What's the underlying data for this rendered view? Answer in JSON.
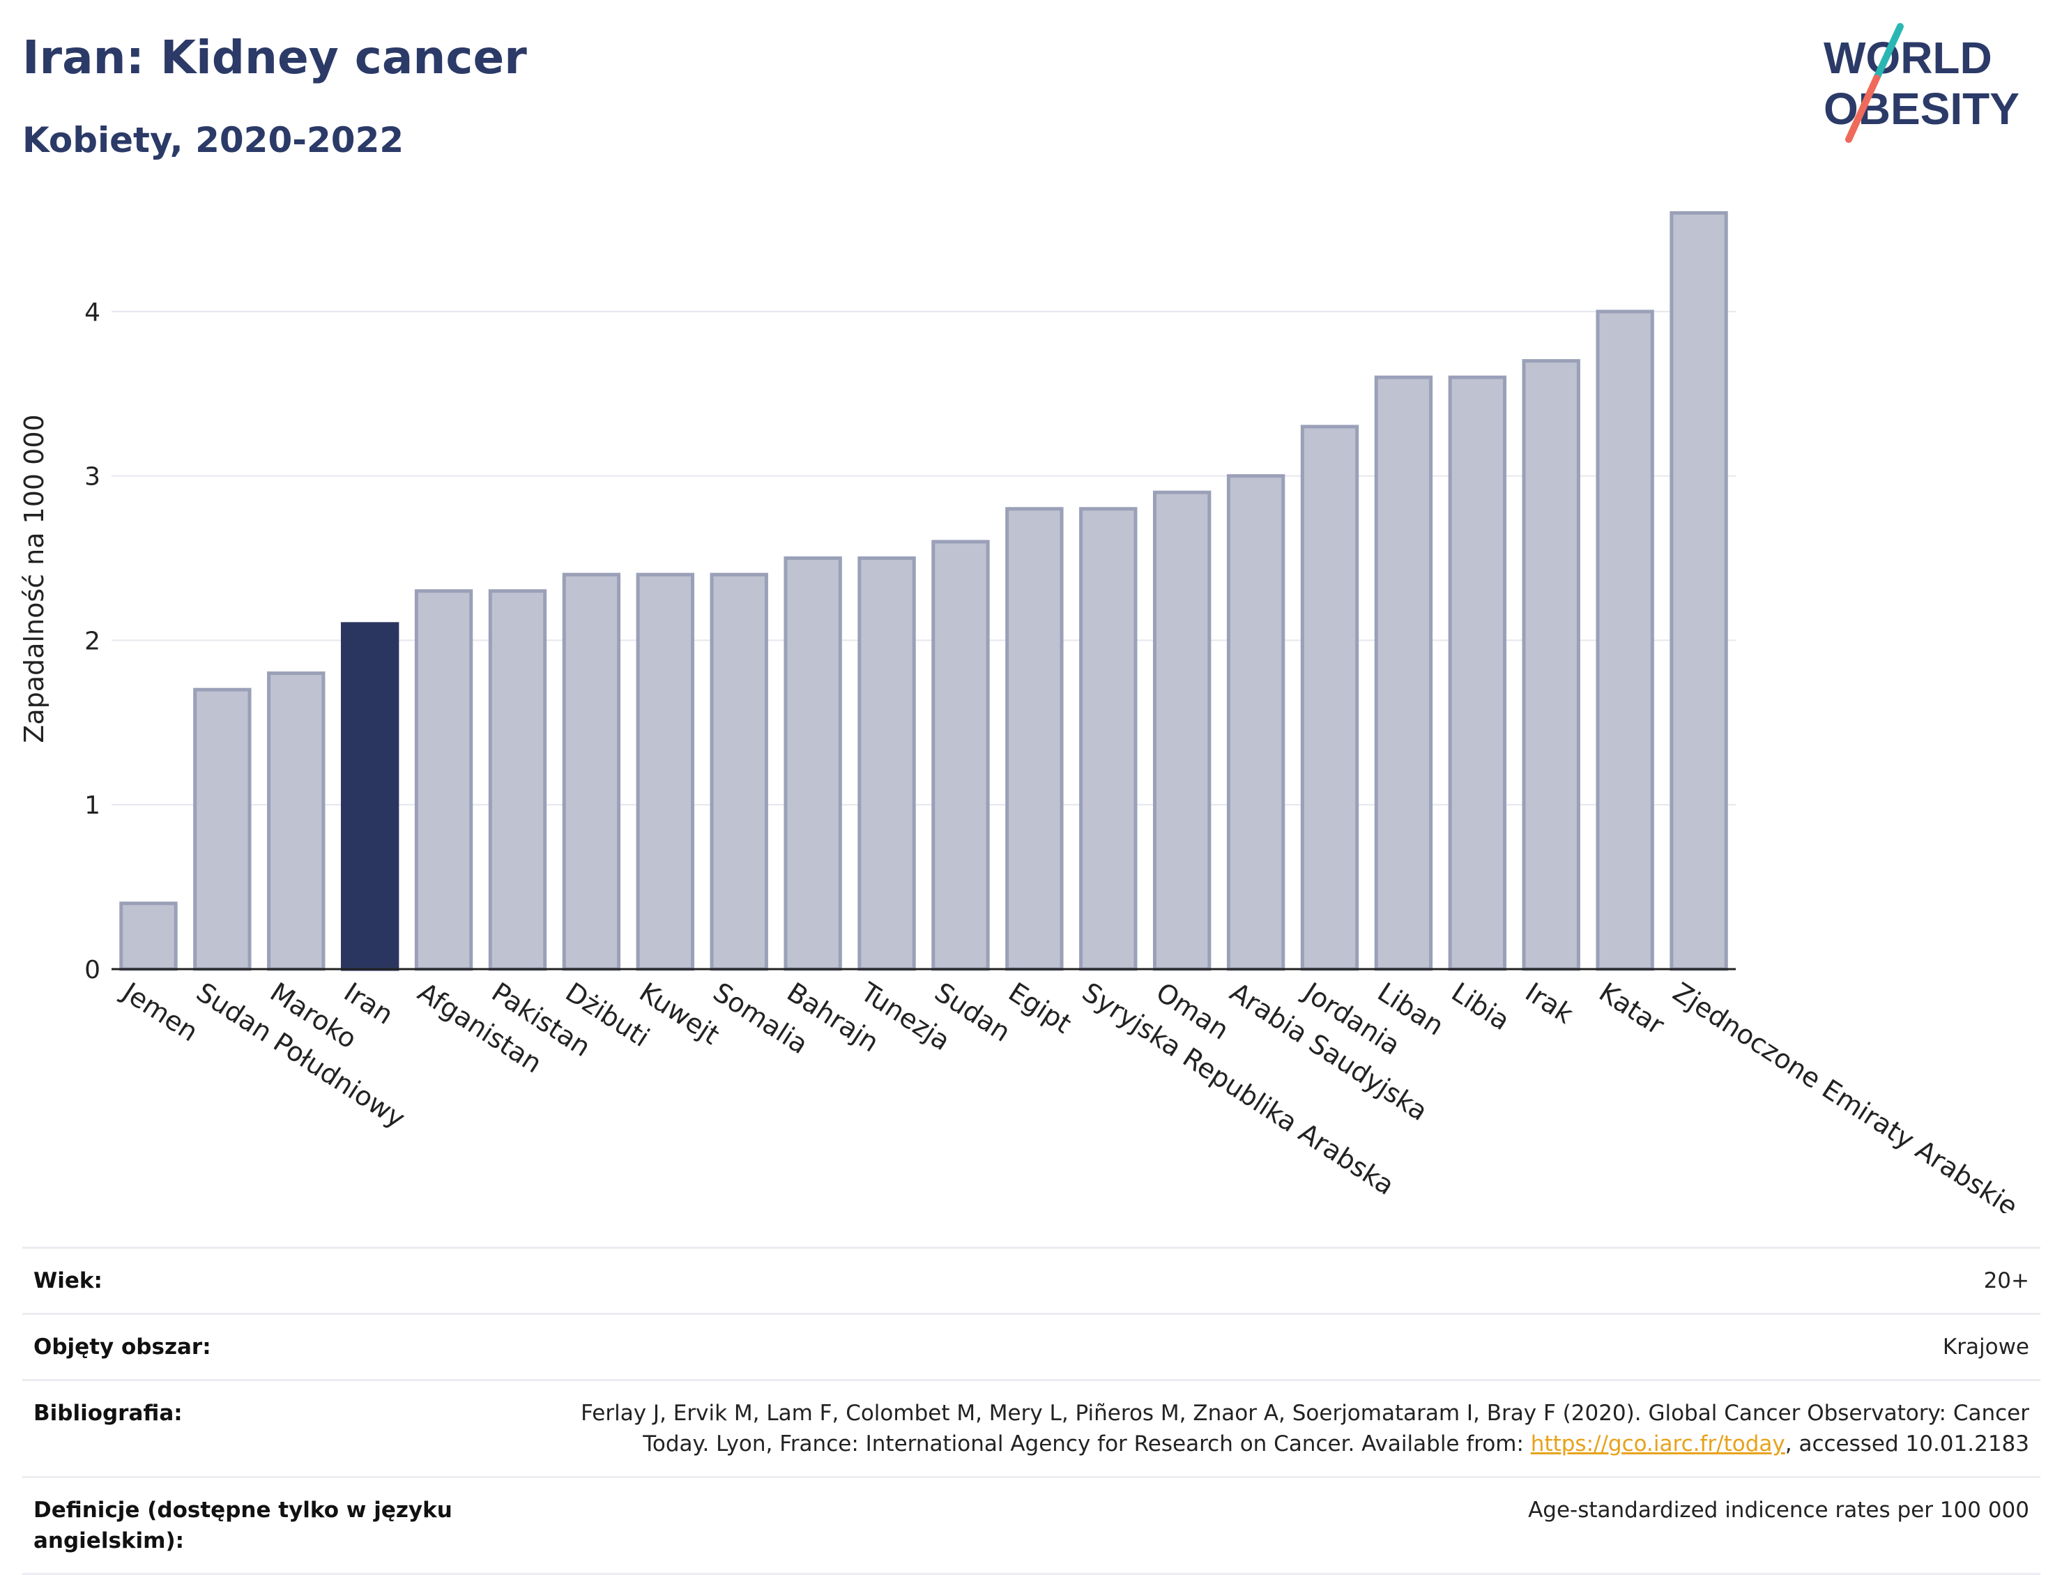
{
  "header": {
    "title": "Iran: Kidney cancer",
    "subtitle": "Kobiety, 2020-2022"
  },
  "logo": {
    "line1": "WORLD",
    "line2": "OBESITY",
    "icon": "world-obesity-logo"
  },
  "colors": {
    "bar": "#bfc2d0",
    "bar_stroke": "#9aa0b8",
    "highlight": "#2b3660",
    "title": "#2b3a67",
    "link": "#e7a21b"
  },
  "chart_data": {
    "type": "bar",
    "ylabel": "Zapadalność na 100 000",
    "xlabel": "",
    "ylim": [
      0,
      4.75
    ],
    "yticks": [
      0,
      1,
      2,
      3,
      4
    ],
    "grid": true,
    "highlight": "Iran",
    "categories": [
      "Jemen",
      "Sudan Południowy",
      "Maroko",
      "Iran",
      "Afganistan",
      "Pakistan",
      "Dżibuti",
      "Kuwejt",
      "Somalia",
      "Bahrajn",
      "Tunezja",
      "Sudan",
      "Egipt",
      "Syryjska Republika Arabska",
      "Oman",
      "Arabia Saudyjska",
      "Jordania",
      "Liban",
      "Libia",
      "Irak",
      "Katar",
      "Zjednoczone Emiraty Arabskie"
    ],
    "values": [
      0.4,
      1.7,
      1.8,
      2.1,
      2.3,
      2.3,
      2.4,
      2.4,
      2.4,
      2.5,
      2.5,
      2.6,
      2.8,
      2.8,
      2.9,
      3.0,
      3.3,
      3.6,
      3.6,
      3.7,
      4.0,
      4.6
    ]
  },
  "meta": {
    "age_label": "Wiek:",
    "age_value": "20+",
    "coverage_label": "Objęty obszar:",
    "coverage_value": "Krajowe",
    "bibliography_label": "Bibliografia:",
    "bibliography_text": "Ferlay J, Ervik M, Lam F, Colombet M, Mery L, Piñeros M, Znaor A, Soerjomataram I, Bray F (2020). Global Cancer Observatory: Cancer Today. Lyon, France: International Agency for Research on Cancer. Available from: ",
    "bibliography_link": "https://gco.iarc.fr/today",
    "bibliography_suffix": ", accessed 10.01.2183",
    "definitions_label": "Definicje (dostępne tylko w języku angielskim):",
    "definitions_value": "Age-standardized indicence rates per 100 000"
  }
}
